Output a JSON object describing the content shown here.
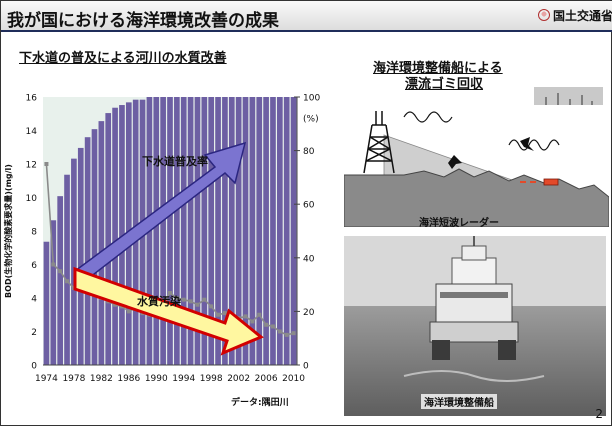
{
  "slide": {
    "title": "我が国における海洋環境改善の成果",
    "org": "国土交通省",
    "page_number": "2"
  },
  "left": {
    "section_title": "下水道の普及による河川の水質改善",
    "source_note": "データ:隅田川"
  },
  "right": {
    "section_title_line1": "海洋環境整備船による",
    "section_title_line2": "漂流ゴミ回収",
    "radar_caption": "海洋短波レーダー",
    "ship_caption": "海洋環境整備船"
  },
  "chart_data": {
    "type": "bar",
    "title": "",
    "x": [
      "1974",
      "1975",
      "1976",
      "1977",
      "1978",
      "1979",
      "1980",
      "1981",
      "1982",
      "1983",
      "1984",
      "1985",
      "1986",
      "1987",
      "1988",
      "1989",
      "1990",
      "1991",
      "1992",
      "1993",
      "1994",
      "1995",
      "1996",
      "1997",
      "1998",
      "1999",
      "2000",
      "2001",
      "2002",
      "2003",
      "2004",
      "2005",
      "2006",
      "2007",
      "2008",
      "2009",
      "2010"
    ],
    "x_tick_labels": [
      "1974",
      "1978",
      "1982",
      "1986",
      "1990",
      "1994",
      "1998",
      "2002",
      "2006",
      "2010"
    ],
    "ylabel": "BOD(生物化学的酸素要求量)(mg/l)",
    "ylim": [
      0,
      16
    ],
    "y_ticks": [
      "0",
      "2",
      "4",
      "6",
      "8",
      "10",
      "12",
      "14",
      "16"
    ],
    "y2label": "(%)",
    "y2lim": [
      0,
      100
    ],
    "y2_ticks": [
      "0",
      "20",
      "40",
      "60",
      "80",
      "100"
    ],
    "series": [
      {
        "name": "下水道普及率",
        "axis": "right",
        "type": "bar",
        "color": "#6d5fa3",
        "values": [
          46,
          54,
          63,
          71,
          77,
          81,
          85,
          88,
          91,
          94,
          96,
          97,
          98,
          99,
          99,
          100,
          100,
          100,
          100,
          100,
          100,
          100,
          100,
          100,
          100,
          100,
          100,
          100,
          100,
          100,
          100,
          100,
          100,
          100,
          100,
          100,
          100
        ]
      },
      {
        "name": "水質汚染",
        "axis": "left",
        "type": "line",
        "color": "#8a8a8a",
        "values": [
          12,
          6,
          5.6,
          5,
          4.6,
          4.7,
          4.4,
          4.2,
          4,
          3.8,
          3.6,
          3.5,
          3.2,
          3.4,
          3.1,
          3.0,
          3.2,
          3.7,
          4.3,
          4.0,
          3.9,
          3.8,
          3.6,
          3.9,
          3.5,
          3.0,
          3.1,
          2.8,
          2.8,
          2.9,
          2.6,
          3.0,
          2.4,
          2.3,
          2.0,
          1.8,
          1.9
        ]
      }
    ],
    "annotations": [
      "下水道普及率",
      "水質汚染"
    ]
  }
}
